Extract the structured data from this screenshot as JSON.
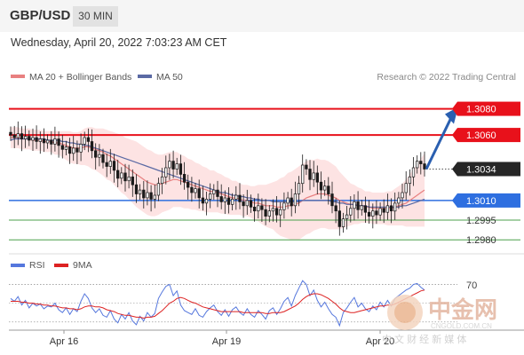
{
  "header": {
    "pair": "GBP/USD",
    "timeframe": "30 MIN"
  },
  "datetime": "Wednesday, April 20, 2022 7:03:23 AM CET",
  "legend": {
    "ma20_label": "MA 20 + Bollinger Bands",
    "ma50_label": "MA 50",
    "credit": "Research © 2022 Trading Central"
  },
  "colors": {
    "red": "#e8111b",
    "blue": "#2e6fe0",
    "green": "#4ca04c",
    "ma20": "#e88080",
    "ma50": "#5b6aa4",
    "band_fill": "#fde3e3",
    "candle_up": "#1a1a1a",
    "candle_down": "#1a1a1a",
    "arrow": "#2a5fb0",
    "rsi": "#5577dd",
    "rsi_ma": "#dd2222"
  },
  "chart_data": {
    "type": "candlestick",
    "y_range": [
      1.2972,
      1.3098
    ],
    "current_price": 1.3034,
    "levels": [
      {
        "label": "1.3080",
        "value": 1.308,
        "kind": "resistance"
      },
      {
        "label": "1.3060",
        "value": 1.306,
        "kind": "resistance"
      },
      {
        "label": "1.3034",
        "value": 1.3034,
        "kind": "current"
      },
      {
        "label": "1.3010",
        "value": 1.301,
        "kind": "pivot"
      },
      {
        "label": "1.2995",
        "value": 1.2995,
        "kind": "support"
      },
      {
        "label": "1.2980",
        "value": 1.298,
        "kind": "support"
      }
    ],
    "x_labels": [
      "Apr 16",
      "Apr 19",
      "Apr 20"
    ],
    "candles_close": [
      1.306,
      1.3058,
      1.3061,
      1.3057,
      1.3059,
      1.3056,
      1.3058,
      1.3055,
      1.3057,
      1.3054,
      1.3056,
      1.3053,
      1.3057,
      1.3052,
      1.3049,
      1.3051,
      1.3046,
      1.305,
      1.3047,
      1.3053,
      1.3058,
      1.3055,
      1.3048,
      1.3043,
      1.3045,
      1.3039,
      1.3036,
      1.304,
      1.3033,
      1.3027,
      1.3031,
      1.3025,
      1.3028,
      1.3022,
      1.3015,
      1.3018,
      1.3012,
      1.3016,
      1.3011,
      1.3014,
      1.3023,
      1.3028,
      1.3035,
      1.304,
      1.3034,
      1.3038,
      1.303,
      1.3024,
      1.302,
      1.3016,
      1.3019,
      1.3012,
      1.3008,
      1.3011,
      1.3015,
      1.3018,
      1.3013,
      1.3009,
      1.3012,
      1.3007,
      1.3011,
      1.3014,
      1.3009,
      1.3006,
      1.301,
      1.3005,
      1.3002,
      1.3006,
      1.3003,
      1.2998,
      1.3002,
      1.3004,
      1.2999,
      1.3003,
      1.3008,
      1.3012,
      1.3006,
      1.3015,
      1.3023,
      1.3037,
      1.3034,
      1.3026,
      1.3031,
      1.3024,
      1.3018,
      1.3021,
      1.3015,
      1.3006,
      1.3002,
      1.299,
      1.2996,
      1.2999,
      1.3004,
      1.3009,
      1.3003,
      1.3006,
      1.3001,
      1.2998,
      1.3002,
      1.2999,
      1.3004,
      1.3001,
      1.3006,
      1.3002,
      1.3008,
      1.3012,
      1.3016,
      1.3023,
      1.3028,
      1.3035,
      1.304,
      1.3038,
      1.3034
    ],
    "ma20": [
      1.3058,
      1.3058,
      1.3058,
      1.3057,
      1.3057,
      1.3057,
      1.3056,
      1.3056,
      1.3056,
      1.3055,
      1.3055,
      1.3055,
      1.3054,
      1.3054,
      1.3053,
      1.3052,
      1.3051,
      1.305,
      1.305,
      1.305,
      1.3051,
      1.3051,
      1.305,
      1.3049,
      1.3048,
      1.3047,
      1.3045,
      1.3044,
      1.3042,
      1.304,
      1.3038,
      1.3036,
      1.3034,
      1.3032,
      1.303,
      1.3028,
      1.3026,
      1.3024,
      1.3023,
      1.3022,
      1.3022,
      1.3023,
      1.3024,
      1.3025,
      1.3026,
      1.3026,
      1.3025,
      1.3024,
      1.3023,
      1.3022,
      1.3021,
      1.302,
      1.3019,
      1.3018,
      1.3017,
      1.3017,
      1.3016,
      1.3015,
      1.3014,
      1.3013,
      1.3012,
      1.3012,
      1.3011,
      1.301,
      1.301,
      1.3009,
      1.3008,
      1.3008,
      1.3007,
      1.3006,
      1.3006,
      1.3006,
      1.3005,
      1.3005,
      1.3005,
      1.3006,
      1.3006,
      1.3007,
      1.3008,
      1.301,
      1.3012,
      1.3013,
      1.3014,
      1.3015,
      1.3015,
      1.3015,
      1.3014,
      1.3013,
      1.3012,
      1.301,
      1.3009,
      1.3008,
      1.3007,
      1.3007,
      1.3006,
      1.3006,
      1.3005,
      1.3005,
      1.3004,
      1.3004,
      1.3004,
      1.3004,
      1.3004,
      1.3004,
      1.3005,
      1.3006,
      1.3007,
      1.3008,
      1.301,
      1.3012,
      1.3014,
      1.3016,
      1.3018
    ],
    "ma50": [
      1.3056,
      1.3057,
      1.3057,
      1.3057,
      1.3057,
      1.3057,
      1.3057,
      1.3057,
      1.3057,
      1.3057,
      1.3056,
      1.3056,
      1.3056,
      1.3056,
      1.3055,
      1.3055,
      1.3054,
      1.3054,
      1.3053,
      1.3053,
      1.3052,
      1.3052,
      1.3051,
      1.305,
      1.3049,
      1.3048,
      1.3047,
      1.3046,
      1.3045,
      1.3044,
      1.3043,
      1.3042,
      1.3041,
      1.304,
      1.3039,
      1.3038,
      1.3037,
      1.3036,
      1.3035,
      1.3034,
      1.3033,
      1.3032,
      1.3031,
      1.303,
      1.3029,
      1.3028,
      1.3027,
      1.3026,
      1.3025,
      1.3024,
      1.3023,
      1.3022,
      1.3021,
      1.302,
      1.3019,
      1.3018,
      1.3017,
      1.3016,
      1.3016,
      1.3015,
      1.3014,
      1.3014,
      1.3013,
      1.3013,
      1.3012,
      1.3012,
      1.3011,
      1.3011,
      1.301,
      1.301,
      1.301,
      1.3009,
      1.3009,
      1.3009,
      1.3009,
      1.3009,
      1.3009,
      1.3009,
      1.3009,
      1.301,
      1.301,
      1.301,
      1.301,
      1.301,
      1.301,
      1.301,
      1.301,
      1.3009,
      1.3009,
      1.3008,
      1.3008,
      1.3007,
      1.3007,
      1.3007,
      1.3006,
      1.3006,
      1.3006,
      1.3005,
      1.3005,
      1.3005,
      1.3005,
      1.3005,
      1.3005,
      1.3005,
      1.3005,
      1.3005,
      1.3006,
      1.3006,
      1.3007,
      1.3008,
      1.3009,
      1.301,
      1.3011
    ],
    "band_half_width": [
      0.0008,
      0.0008,
      0.0008,
      0.0008,
      0.0008,
      0.0008,
      0.0008,
      0.0008,
      0.0008,
      0.0008,
      0.0008,
      0.0008,
      0.0009,
      0.0009,
      0.001,
      0.0011,
      0.0012,
      0.0012,
      0.0012,
      0.0013,
      0.0014,
      0.0015,
      0.0016,
      0.0016,
      0.0017,
      0.0018,
      0.0019,
      0.0019,
      0.002,
      0.0021,
      0.0022,
      0.0022,
      0.0023,
      0.0024,
      0.0025,
      0.0025,
      0.0025,
      0.0025,
      0.0025,
      0.0024,
      0.0023,
      0.0022,
      0.0022,
      0.0022,
      0.0021,
      0.0021,
      0.002,
      0.002,
      0.0019,
      0.0019,
      0.0018,
      0.0018,
      0.0017,
      0.0017,
      0.0016,
      0.0016,
      0.0015,
      0.0015,
      0.0014,
      0.0014,
      0.0013,
      0.0013,
      0.0012,
      0.0012,
      0.0012,
      0.0012,
      0.0013,
      0.0014,
      0.0015,
      0.0016,
      0.0017,
      0.0018,
      0.002,
      0.0022,
      0.0023,
      0.0025,
      0.0026,
      0.0027,
      0.0028,
      0.0028,
      0.0028,
      0.0028,
      0.0027,
      0.0027,
      0.0026,
      0.0026,
      0.0026,
      0.0025,
      0.0024,
      0.0022,
      0.002,
      0.0018,
      0.0016,
      0.0015,
      0.0014,
      0.0013,
      0.0012,
      0.0012,
      0.0012,
      0.0012,
      0.0012,
      0.0012,
      0.0013,
      0.0013,
      0.0014,
      0.0015,
      0.0016,
      0.0018,
      0.002,
      0.0022,
      0.0024,
      0.0026,
      0.0028
    ],
    "projection_target": 1.308
  },
  "rsi": {
    "legend_rsi": "RSI",
    "legend_ma": "9MA",
    "level_label": "70",
    "y_range": [
      25,
      78
    ],
    "values": [
      55,
      52,
      57,
      48,
      53,
      45,
      50,
      47,
      49,
      44,
      47,
      46,
      50,
      43,
      40,
      45,
      38,
      44,
      41,
      52,
      60,
      55,
      45,
      40,
      44,
      37,
      35,
      42,
      33,
      29,
      38,
      33,
      40,
      31,
      27,
      36,
      31,
      40,
      35,
      39,
      55,
      62,
      68,
      70,
      58,
      63,
      48,
      42,
      40,
      38,
      44,
      37,
      35,
      41,
      45,
      48,
      41,
      37,
      43,
      36,
      43,
      46,
      40,
      37,
      44,
      38,
      35,
      42,
      38,
      33,
      42,
      45,
      38,
      44,
      52,
      56,
      47,
      58,
      66,
      74,
      70,
      58,
      64,
      53,
      46,
      51,
      44,
      38,
      35,
      26,
      40,
      45,
      51,
      56,
      46,
      50,
      44,
      41,
      47,
      43,
      51,
      46,
      53,
      47,
      55,
      58,
      61,
      64,
      66,
      70,
      71,
      67,
      64
    ],
    "ma_values": [
      52,
      52,
      52,
      51,
      51,
      50,
      50,
      49,
      49,
      48,
      48,
      47,
      47,
      46,
      45,
      45,
      44,
      44,
      43,
      44,
      46,
      47,
      47,
      46,
      46,
      45,
      43,
      42,
      41,
      39,
      38,
      37,
      37,
      36,
      35,
      35,
      34,
      35,
      35,
      36,
      39,
      42,
      46,
      50,
      52,
      55,
      56,
      55,
      53,
      51,
      50,
      48,
      46,
      45,
      44,
      43,
      42,
      41,
      41,
      41,
      41,
      41,
      41,
      40,
      40,
      40,
      40,
      40,
      40,
      39,
      39,
      40,
      40,
      40,
      41,
      43,
      45,
      47,
      50,
      54,
      57,
      59,
      60,
      60,
      59,
      57,
      55,
      52,
      49,
      45,
      42,
      41,
      40,
      40,
      41,
      42,
      43,
      44,
      45,
      46,
      47,
      47,
      48,
      48,
      49,
      51,
      53,
      55,
      57,
      59,
      61,
      63,
      64
    ]
  },
  "watermark": {
    "brand": "中金网",
    "site": "CNGOLD.COM.CN",
    "slogan": "中 文 财 经 新 媒 体"
  }
}
